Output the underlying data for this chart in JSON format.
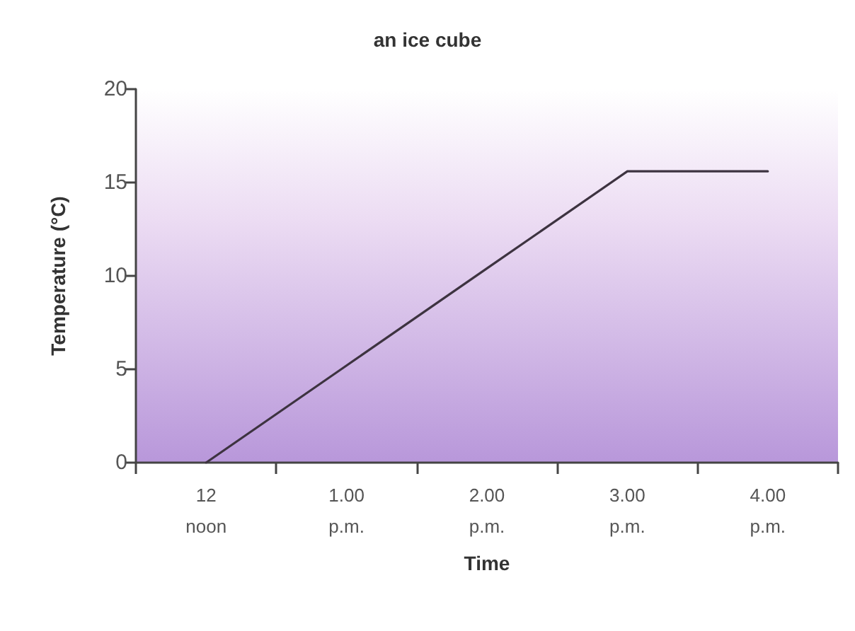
{
  "chart_data": {
    "type": "line",
    "title": "an ice cube",
    "xlabel": "Time",
    "ylabel": "Temperature (°C)",
    "categories": [
      "12\nnoon",
      "1.00\np.m.",
      "2.00\np.m.",
      "3.00\np.m.",
      "4.00\np.m."
    ],
    "series": [
      {
        "color": "#3d3340",
        "values": [
          0,
          5.2,
          10.4,
          15.6,
          15.6
        ]
      }
    ],
    "ylim": [
      0,
      20
    ],
    "yticks": [
      0,
      5,
      10,
      15,
      20
    ],
    "grid": false,
    "marker": "none",
    "line_style": "solid"
  }
}
